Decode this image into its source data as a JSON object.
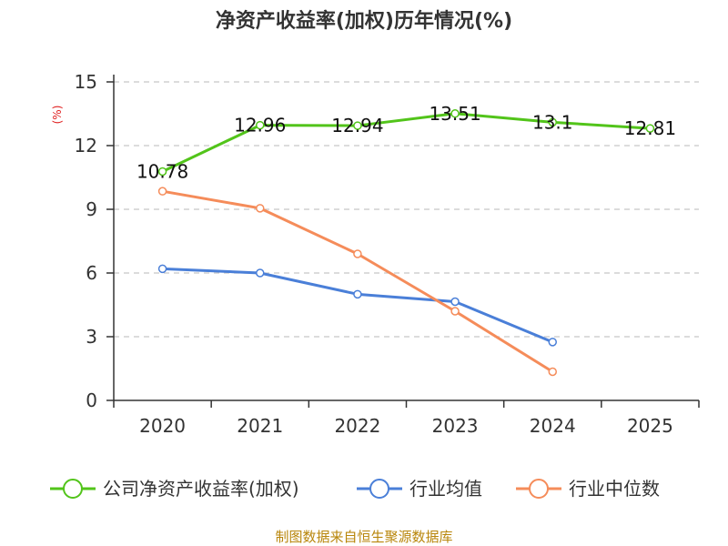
{
  "chart_data": {
    "type": "line",
    "title": "净资产收益率(加权)历年情况(%)",
    "ylabel": "(%)",
    "xlabel": "",
    "categories": [
      "2020",
      "2021",
      "2022",
      "2023",
      "2024",
      "2025"
    ],
    "ylim": [
      0,
      15
    ],
    "yticks": [
      0,
      3,
      6,
      9,
      12,
      15
    ],
    "grid": true,
    "legend_position": "bottom",
    "series": [
      {
        "name": "公司净资产收益率(加权)",
        "color": "#52c41a",
        "values": [
          10.78,
          12.96,
          12.94,
          13.51,
          13.1,
          12.81
        ],
        "labels": [
          "10.78",
          "12.96",
          "12.94",
          "13.51",
          "13.1",
          "12.81"
        ]
      },
      {
        "name": "行业均值",
        "color": "#4a7fd8",
        "values": [
          6.2,
          6.0,
          5.0,
          4.65,
          2.75,
          null
        ]
      },
      {
        "name": "行业中位数",
        "color": "#f58c5a",
        "values": [
          9.85,
          9.05,
          6.9,
          4.2,
          1.35,
          null
        ]
      }
    ],
    "source": "制图数据来自恒生聚源数据库"
  }
}
